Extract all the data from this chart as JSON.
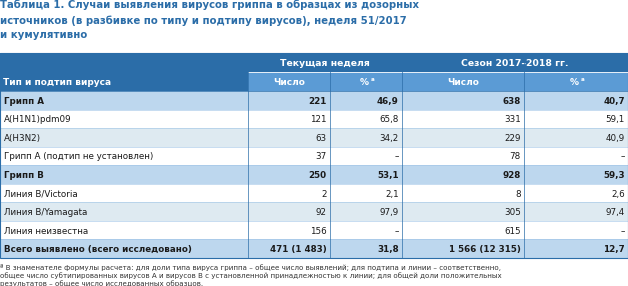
{
  "title_line1": "Таблица 1. Случаи выявления вирусов гриппа в образцах из дозорных",
  "title_line2": "источников (в разбивке по типу и подтипу вирусов), неделя 51/2017",
  "title_line3": "и кумулятивно",
  "header1": "Текущая неделя",
  "header2": "Сезон 2017–2018 гг.",
  "col0_header": "Тип и подтип вируса",
  "col_num_header": "Число",
  "col_pct_header": "%ª",
  "rows": [
    {
      "label": "Грипп А",
      "bold": true,
      "shaded": true,
      "v1": "221",
      "v2": "46,9",
      "v3": "638",
      "v4": "40,7"
    },
    {
      "label": "A(H1N1)pdm09",
      "bold": false,
      "shaded": false,
      "v1": "121",
      "v2": "65,8",
      "v3": "331",
      "v4": "59,1"
    },
    {
      "label": "A(H3N2)",
      "bold": false,
      "shaded": false,
      "v1": "63",
      "v2": "34,2",
      "v3": "229",
      "v4": "40,9"
    },
    {
      "label": "Грипп А (подтип не установлен)",
      "bold": false,
      "shaded": false,
      "v1": "37",
      "v2": "–",
      "v3": "78",
      "v4": "–"
    },
    {
      "label": "Грипп В",
      "bold": true,
      "shaded": true,
      "v1": "250",
      "v2": "53,1",
      "v3": "928",
      "v4": "59,3"
    },
    {
      "label": "Линия B/Victoria",
      "bold": false,
      "shaded": false,
      "v1": "2",
      "v2": "2,1",
      "v3": "8",
      "v4": "2,6"
    },
    {
      "label": "Линия B/Yamagata",
      "bold": false,
      "shaded": false,
      "v1": "92",
      "v2": "97,9",
      "v3": "305",
      "v4": "97,4"
    },
    {
      "label": "Линия неизвестна",
      "bold": false,
      "shaded": false,
      "v1": "156",
      "v2": "–",
      "v3": "615",
      "v4": "–"
    },
    {
      "label": "Всего выявлено (всего исследовано)",
      "bold": true,
      "shaded": true,
      "v1": "471 (1 483)",
      "v2": "31,8",
      "v3": "1 566 (12 315)",
      "v4": "12,7"
    }
  ],
  "footnote_symbol": "ª",
  "footnote_text": " В знаменателе формулы расчета: для доли типа вируса гриппа – общее число выявлений; для подтипа и линии – соответственно,\nобщее число субтипированных вирусов А и вирусов В с установленной принадлежностью к линии; для общей доли положительных\nрезультатов – общее число исследованных образцов.",
  "color_header_dark": "#2B6DA8",
  "color_header_light": "#5B9BD5",
  "color_shaded_row": "#BDD7EE",
  "color_alt_row": "#DEEAF1",
  "color_white_row": "#FFFFFF",
  "color_title": "#2B6DA8",
  "color_border": "#2B6DA8",
  "color_divider": "#9DC3E6",
  "bg_color": "#FFFFFF"
}
